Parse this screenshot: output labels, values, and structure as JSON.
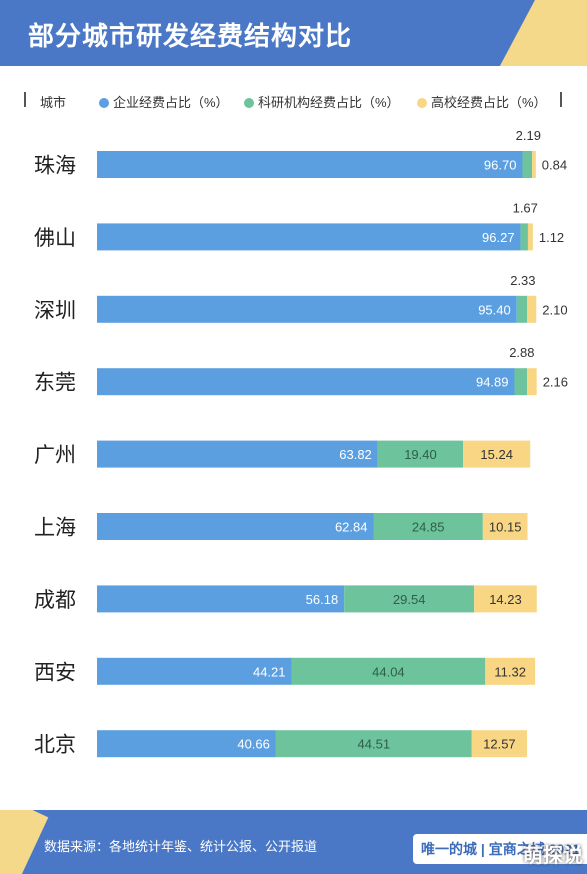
{
  "header": {
    "title": "部分城市研发经费结构对比"
  },
  "legend": {
    "city_label": "城市",
    "items": [
      {
        "label": "企业经费占比（%）",
        "color": "#5b9fe0"
      },
      {
        "label": "科研机构经费占比（%）",
        "color": "#6cc39c"
      },
      {
        "label": "高校经费占比（%）",
        "color": "#f8d684"
      }
    ]
  },
  "chart_data": {
    "type": "bar",
    "stacked": true,
    "orientation": "horizontal",
    "categories": [
      "珠海",
      "佛山",
      "深圳",
      "东莞",
      "广州",
      "上海",
      "成都",
      "西安",
      "北京"
    ],
    "series": [
      {
        "name": "企业经费占比（%）",
        "values": [
          96.7,
          96.27,
          95.4,
          94.89,
          63.82,
          62.84,
          56.18,
          44.21,
          40.66
        ],
        "color": "#5b9fe0"
      },
      {
        "name": "科研机构经费占比（%）",
        "values": [
          2.19,
          1.67,
          2.33,
          2.88,
          19.4,
          24.85,
          29.54,
          44.04,
          44.51
        ],
        "color": "#6cc39c"
      },
      {
        "name": "高校经费占比（%）",
        "values": [
          0.84,
          1.12,
          2.1,
          2.16,
          15.24,
          10.15,
          14.23,
          11.32,
          12.57
        ],
        "color": "#f8d684"
      }
    ],
    "xlim": [
      0,
      100
    ],
    "grid": false,
    "legend_position": "top"
  },
  "footer": {
    "source": "数据来源：各地统计年鉴、统计公报、公开报道",
    "logo": "唯一的城 | 宜商之城 2021"
  },
  "watermark": "萌探说"
}
